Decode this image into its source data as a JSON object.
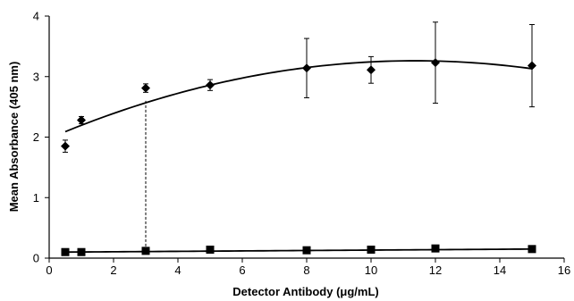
{
  "chart_data": {
    "type": "scatter",
    "xlabel": "Detector Antibody (μg/mL)",
    "ylabel": "Mean Absorbance (405 nm)",
    "xlim": [
      0,
      16
    ],
    "ylim": [
      0,
      4
    ],
    "x_ticks": [
      0,
      2,
      4,
      6,
      8,
      10,
      12,
      14,
      16
    ],
    "y_ticks": [
      0,
      1,
      2,
      3,
      4
    ],
    "grid": false,
    "series": [
      {
        "marker": "diamond",
        "color": "#000000",
        "x": [
          0.5,
          1,
          3,
          5,
          8,
          10,
          12,
          15
        ],
        "y": [
          1.85,
          2.28,
          2.81,
          2.86,
          3.14,
          3.11,
          3.23,
          3.18
        ],
        "error": [
          0.1,
          0.06,
          0.07,
          0.09,
          0.49,
          0.22,
          0.67,
          0.68
        ]
      },
      {
        "marker": "square",
        "color": "#000000",
        "x": [
          0.5,
          1,
          3,
          5,
          8,
          10,
          12,
          15
        ],
        "y": [
          0.1,
          0.1,
          0.12,
          0.14,
          0.13,
          0.14,
          0.16,
          0.15
        ],
        "error": [
          0,
          0,
          0,
          0,
          0,
          0,
          0,
          0
        ]
      }
    ],
    "trendlines": [
      {
        "x": [
          0.5,
          11,
          15
        ],
        "y": [
          2.09,
          3.26,
          3.13
        ]
      },
      {
        "x": [
          0.5,
          15
        ],
        "y": [
          0.1,
          0.15
        ]
      }
    ],
    "reference_line": {
      "style": "dashed",
      "x": 3,
      "y_from": 0.12,
      "y_to": 2.6
    }
  }
}
